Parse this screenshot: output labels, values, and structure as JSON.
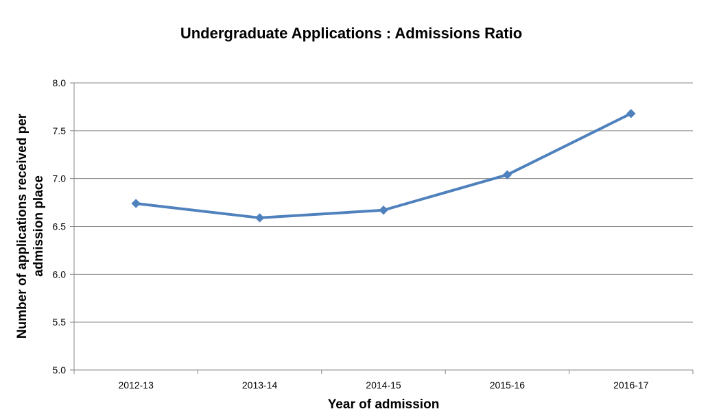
{
  "chart_data": {
    "type": "line",
    "title": "Undergraduate Applications : Admissions Ratio",
    "xlabel": "Year of admission",
    "ylabel_lines": [
      "Number of applications received per",
      "admission place"
    ],
    "categories": [
      "2012-13",
      "2013-14",
      "2014-15",
      "2015-16",
      "2016-17"
    ],
    "series": [
      {
        "values": [
          6.74,
          6.59,
          6.67,
          7.04,
          7.68
        ],
        "color": "#4F81BD",
        "marker": "diamond"
      }
    ],
    "ylim": [
      5.0,
      8.0
    ],
    "yticks": [
      "5.0",
      "5.5",
      "6.0",
      "6.5",
      "7.0",
      "7.5",
      "8.0"
    ],
    "grid": true,
    "legend": "none",
    "colors": {
      "gridline": "#868686",
      "axis": "#868686",
      "series": "#4F81BD"
    }
  }
}
